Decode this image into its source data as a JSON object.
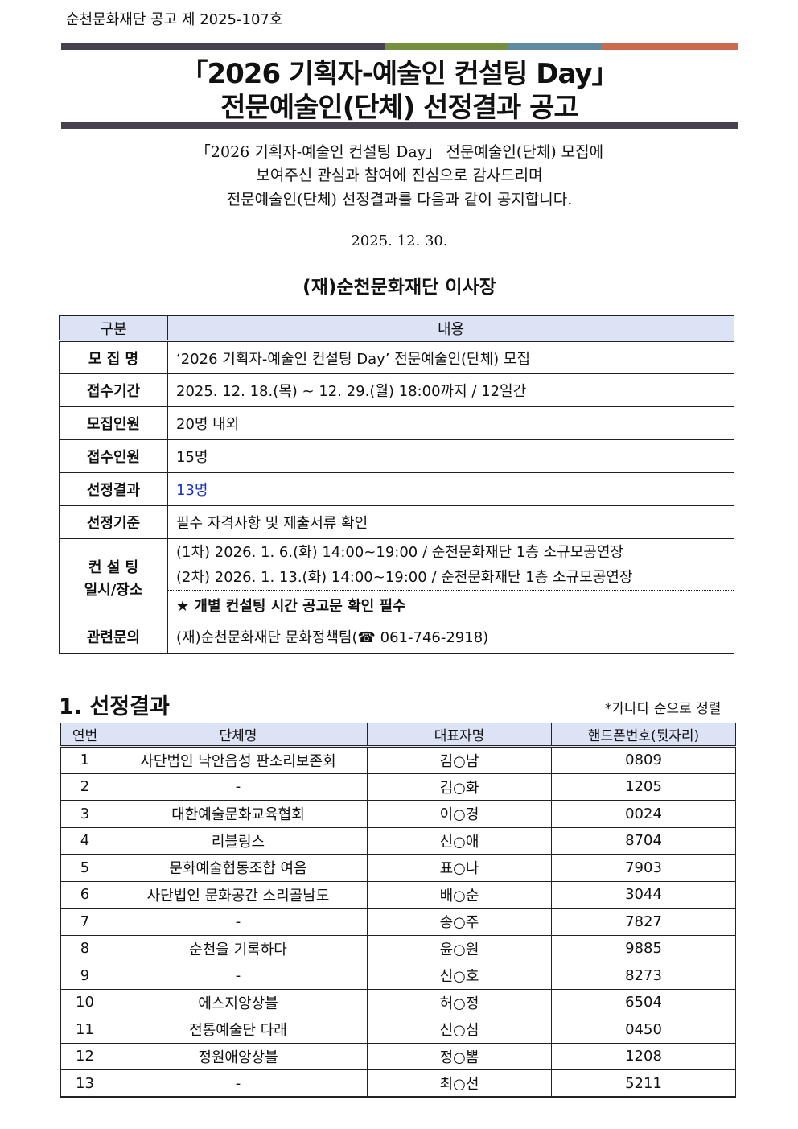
{
  "doc_number": "순천문화재단 공고 제 2025-107호",
  "header_bar_colors": [
    "#45414f",
    "#74903f",
    "#5f8ba0",
    "#cc6a4e"
  ],
  "title_line1": "「2026 기획자-예술인 컨설팅 Day」",
  "title_line2": "전문예술인(단체) 선정결과 공고",
  "intro": [
    "「2026 기획자-예술인 컨설팅 Day」 전문예술인(단체) 모집에",
    "보여주신 관심과 참여에 진심으로 감사드리며",
    "전문예술인(단체) 선정결과를 다음과 같이 공지합니다."
  ],
  "date": "2025. 12. 30.",
  "signer": "(재)순천문화재단 이사장",
  "info": {
    "head": [
      "구분",
      "내용"
    ],
    "rows": [
      {
        "label": "모 집 명",
        "value": "‘2026 기획자-예술인 컨설팅 Day’ 전문예술인(단체) 모집"
      },
      {
        "label": "접수기간",
        "value": "2025. 12. 18.(목) ~ 12. 29.(월) 18:00까지 / 12일간"
      },
      {
        "label": "모집인원",
        "value": "20명 내외"
      },
      {
        "label": "접수인원",
        "value": "15명"
      },
      {
        "label": "선정결과",
        "value": "13명"
      },
      {
        "label": "선정기준",
        "value": "필수 자격사항 및 제출서류 확인"
      }
    ],
    "consult": {
      "label1": "컨 설 팅",
      "label2": "일시/장소",
      "line1": "(1차) 2026. 1.  6.(화) 14:00~19:00 / 순천문화재단 1층 소규모공연장",
      "line2": "(2차) 2026. 1. 13.(화) 14:00~19:00 / 순천문화재단 1층 소규모공연장",
      "note": "★ 개별 컨설팅 시간 공고문 확인 필수"
    },
    "contact": {
      "label": "관련문의",
      "value": "(재)순천문화재단 문화정책팀(☎ 061-746-2918)"
    }
  },
  "section": {
    "title": "1. 선정결과",
    "note": "*가나다 순으로 정렬"
  },
  "results": {
    "head": [
      "연번",
      "단체명",
      "대표자명",
      "핸드폰번호(뒷자리)"
    ],
    "rows": [
      [
        "1",
        "사단법인 낙안읍성 판소리보존회",
        "김○남",
        "0809"
      ],
      [
        "2",
        "-",
        "김○화",
        "1205"
      ],
      [
        "3",
        "대한예술문화교육협회",
        "이○경",
        "0024"
      ],
      [
        "4",
        "리블링스",
        "신○애",
        "8704"
      ],
      [
        "5",
        "문화예술협동조합 여음",
        "표○나",
        "7903"
      ],
      [
        "6",
        "사단법인 문화공간 소리골남도",
        "배○순",
        "3044"
      ],
      [
        "7",
        "-",
        "송○주",
        "7827"
      ],
      [
        "8",
        "순천을 기록하다",
        "윤○원",
        "9885"
      ],
      [
        "9",
        "-",
        "신○호",
        "8273"
      ],
      [
        "10",
        "에스지앙상블",
        "허○정",
        "6504"
      ],
      [
        "11",
        "전통예술단 다래",
        "신○심",
        "0450"
      ],
      [
        "12",
        "정원애앙상블",
        "정○뽐",
        "1208"
      ],
      [
        "13",
        "-",
        "최○선",
        "5211"
      ]
    ]
  }
}
